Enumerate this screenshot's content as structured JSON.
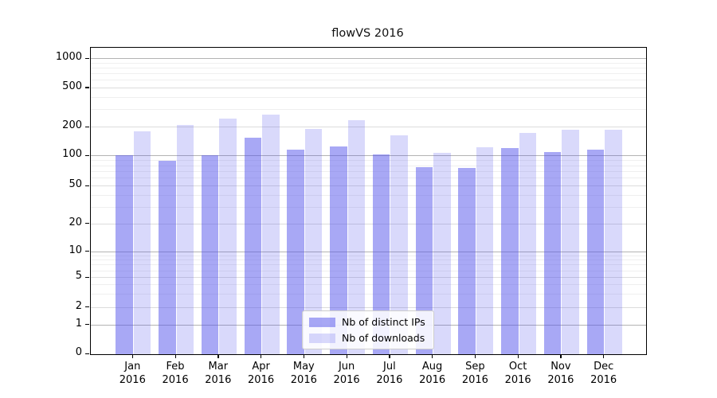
{
  "figure": {
    "title": "flowVS 2016"
  },
  "chart_data": {
    "type": "bar",
    "title": "flowVS 2016",
    "xlabel": "",
    "ylabel": "",
    "scale": "symlog-like (log above 1, compressed/linear below)",
    "grid": true,
    "legend_position": "lower center",
    "yticks": [
      0,
      1,
      2,
      5,
      10,
      20,
      50,
      100,
      200,
      500,
      1000
    ],
    "ylim": [
      0,
      1500
    ],
    "minor_gridline_values": [
      3,
      4,
      6,
      7,
      8,
      9,
      30,
      40,
      60,
      70,
      80,
      90,
      300,
      400,
      600,
      700,
      800,
      900
    ],
    "categories": [
      {
        "month": "Jan",
        "year": "2016"
      },
      {
        "month": "Feb",
        "year": "2016"
      },
      {
        "month": "Mar",
        "year": "2016"
      },
      {
        "month": "Apr",
        "year": "2016"
      },
      {
        "month": "May",
        "year": "2016"
      },
      {
        "month": "Jun",
        "year": "2016"
      },
      {
        "month": "Jul",
        "year": "2016"
      },
      {
        "month": "Aug",
        "year": "2016"
      },
      {
        "month": "Sep",
        "year": "2016"
      },
      {
        "month": "Oct",
        "year": "2016"
      },
      {
        "month": "Nov",
        "year": "2016"
      },
      {
        "month": "Dec",
        "year": "2016"
      }
    ],
    "series": [
      {
        "name": "Nb of distinct IPs",
        "color": "rgba(82,82,235,0.50)",
        "values": [
          102,
          91,
          103,
          155,
          117,
          127,
          105,
          78,
          76,
          121,
          112,
          118
        ]
      },
      {
        "name": "Nb of downloads",
        "color": "rgba(82,82,235,0.22)",
        "values": [
          181,
          213,
          247,
          272,
          192,
          236,
          165,
          108,
          124,
          176,
          190,
          189
        ]
      }
    ]
  }
}
